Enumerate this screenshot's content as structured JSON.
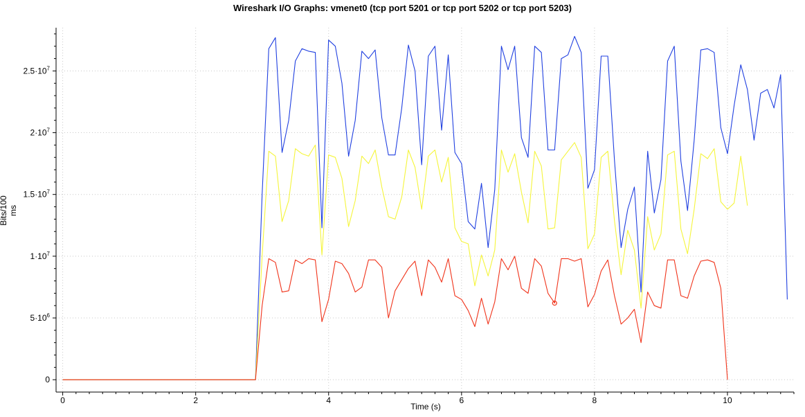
{
  "chart_data": {
    "type": "line",
    "title": "Wireshark I/O Graphs: vmenet0 (tcp port 5201 or tcp port 5202 or tcp port 5203)",
    "xlabel": "Time (s)",
    "ylabel": "Bits/100 ms",
    "xlim": [
      -0.1,
      11.0
    ],
    "ylim": [
      -1000000.0,
      28500000.0
    ],
    "x_ticks": [
      {
        "value": 0,
        "label": "0"
      },
      {
        "value": 2,
        "label": "2"
      },
      {
        "value": 4,
        "label": "4"
      },
      {
        "value": 6,
        "label": "6"
      },
      {
        "value": 8,
        "label": "8"
      },
      {
        "value": 10,
        "label": "10"
      }
    ],
    "y_ticks": [
      {
        "value": 0,
        "base": "0",
        "exp": ""
      },
      {
        "value": 5000000,
        "base": "5·10",
        "exp": "6"
      },
      {
        "value": 10000000,
        "base": "1·10",
        "exp": "7"
      },
      {
        "value": 15000000,
        "base": "1.5·10",
        "exp": "7"
      },
      {
        "value": 20000000,
        "base": "2·10",
        "exp": "7"
      },
      {
        "value": 25000000,
        "base": "2.5·10",
        "exp": "7"
      }
    ],
    "grid": true,
    "series": [
      {
        "color": "#1f3fe0",
        "x": [
          0,
          0.1,
          0.2,
          0.3,
          0.4,
          0.5,
          0.6,
          0.7,
          0.8,
          0.9,
          1.0,
          1.1,
          1.2,
          1.3,
          1.4,
          1.5,
          1.6,
          1.7,
          1.8,
          1.9,
          2.0,
          2.1,
          2.2,
          2.3,
          2.4,
          2.5,
          2.6,
          2.7,
          2.8,
          2.9,
          3.0,
          3.1,
          3.2,
          3.3,
          3.4,
          3.5,
          3.6,
          3.7,
          3.8,
          3.9,
          4.0,
          4.1,
          4.2,
          4.3,
          4.4,
          4.5,
          4.6,
          4.7,
          4.8,
          4.9,
          5.0,
          5.1,
          5.2,
          5.3,
          5.4,
          5.5,
          5.6,
          5.7,
          5.8,
          5.9,
          6.0,
          6.1,
          6.2,
          6.3,
          6.4,
          6.5,
          6.6,
          6.7,
          6.8,
          6.9,
          7.0,
          7.1,
          7.2,
          7.3,
          7.4,
          7.5,
          7.6,
          7.7,
          7.8,
          7.9,
          8.0,
          8.1,
          8.2,
          8.3,
          8.4,
          8.5,
          8.6,
          8.7,
          8.8,
          8.9,
          9.0,
          9.1,
          9.2,
          9.3,
          9.4,
          9.5,
          9.6,
          9.7,
          9.8,
          9.9,
          10.0,
          10.1,
          10.2,
          10.3,
          10.4,
          10.5,
          10.6,
          10.7,
          10.8,
          10.9
        ],
        "values": [
          0,
          0,
          0,
          0,
          0,
          0,
          0,
          0,
          0,
          0,
          0,
          0,
          0,
          0,
          0,
          0,
          0,
          0,
          0,
          0,
          0,
          0,
          0,
          0,
          0,
          0,
          0,
          0,
          0,
          0,
          15000000.0,
          26800000.0,
          27700000.0,
          18400000.0,
          21000000.0,
          25800000.0,
          26800000.0,
          26600000.0,
          26500000.0,
          12300000.0,
          27500000.0,
          27000000.0,
          24000000.0,
          18100000.0,
          21000000.0,
          26600000.0,
          26000000.0,
          26700000.0,
          21200000.0,
          18200000.0,
          18200000.0,
          22000000.0,
          27100000.0,
          25000000.0,
          17400000.0,
          26200000.0,
          27000000.0,
          20200000.0,
          26300000.0,
          18400000.0,
          17500000.0,
          12800000.0,
          12200000.0,
          15900000.0,
          10700000.0,
          15400000.0,
          27000000.0,
          25100000.0,
          27000000.0,
          19600000.0,
          18000000.0,
          27000000.0,
          26500000.0,
          18600000.0,
          18600000.0,
          26000000.0,
          26300000.0,
          27800000.0,
          26500000.0,
          15500000.0,
          17000000.0,
          26200000.0,
          26200000.0,
          17800000.0,
          10700000.0,
          13800000.0,
          15600000.0,
          7100000.0,
          18500000.0,
          13500000.0,
          16200000.0,
          25800000.0,
          27000000.0,
          17700000.0,
          13700000.0,
          19400000.0,
          26700000.0,
          26800000.0,
          26500000.0,
          20400000.0,
          18300000.0,
          22200000.0,
          25500000.0,
          23500000.0,
          19400000.0,
          23200000.0,
          23500000.0,
          22000000.0,
          24700000.0,
          6500000.0
        ]
      },
      {
        "color": "#f5f53a",
        "x": [
          0,
          0.1,
          0.2,
          0.3,
          0.4,
          0.5,
          0.6,
          0.7,
          0.8,
          0.9,
          1.0,
          1.1,
          1.2,
          1.3,
          1.4,
          1.5,
          1.6,
          1.7,
          1.8,
          1.9,
          2.0,
          2.1,
          2.2,
          2.3,
          2.4,
          2.5,
          2.6,
          2.7,
          2.8,
          2.9,
          3.0,
          3.1,
          3.2,
          3.3,
          3.4,
          3.5,
          3.6,
          3.7,
          3.8,
          3.9,
          4.0,
          4.1,
          4.2,
          4.3,
          4.4,
          4.5,
          4.6,
          4.7,
          4.8,
          4.9,
          5.0,
          5.1,
          5.2,
          5.3,
          5.4,
          5.5,
          5.6,
          5.7,
          5.8,
          5.9,
          6.0,
          6.1,
          6.2,
          6.3,
          6.4,
          6.5,
          6.6,
          6.7,
          6.8,
          6.9,
          7.0,
          7.1,
          7.2,
          7.3,
          7.4,
          7.5,
          7.6,
          7.7,
          7.8,
          7.9,
          8.0,
          8.1,
          8.2,
          8.3,
          8.4,
          8.5,
          8.6,
          8.7,
          8.8,
          8.9,
          9.0,
          9.1,
          9.2,
          9.3,
          9.4,
          9.5,
          9.6,
          9.7,
          9.8,
          9.9,
          10.0,
          10.1,
          10.2,
          10.3
        ],
        "values": [
          0,
          0,
          0,
          0,
          0,
          0,
          0,
          0,
          0,
          0,
          0,
          0,
          0,
          0,
          0,
          0,
          0,
          0,
          0,
          0,
          0,
          0,
          0,
          0,
          0,
          0,
          0,
          0,
          0,
          0,
          10000000.0,
          18500000.0,
          18100000.0,
          12800000.0,
          14500000.0,
          18700000.0,
          18300000.0,
          18100000.0,
          19000000.0,
          10100000.0,
          18200000.0,
          18000000.0,
          16300000.0,
          12400000.0,
          14500000.0,
          18100000.0,
          17500000.0,
          18600000.0,
          15600000.0,
          13200000.0,
          13000000.0,
          14800000.0,
          18600000.0,
          17200000.0,
          13800000.0,
          18100000.0,
          18600000.0,
          16000000.0,
          18000000.0,
          12300000.0,
          11200000.0,
          11000000.0,
          7600000.0,
          10100000.0,
          8400000.0,
          10500000.0,
          18600000.0,
          16800000.0,
          18300000.0,
          15200000.0,
          12700000.0,
          18500000.0,
          17300000.0,
          12200000.0,
          12300000.0,
          17800000.0,
          18500000.0,
          19200000.0,
          18000000.0,
          10600000.0,
          11800000.0,
          18000000.0,
          18500000.0,
          12900000.0,
          8500000.0,
          12100000.0,
          10500000.0,
          5800000.0,
          13200000.0,
          10500000.0,
          11800000.0,
          18200000.0,
          18500000.0,
          12200000.0,
          10200000.0,
          13800000.0,
          18300000.0,
          17900000.0,
          18700000.0,
          14400000.0,
          13800000.0,
          14300000.0,
          18100000.0,
          14100000.0
        ]
      },
      {
        "color": "#f0331a",
        "x": [
          0,
          0.1,
          0.2,
          0.3,
          0.4,
          0.5,
          0.6,
          0.7,
          0.8,
          0.9,
          1.0,
          1.1,
          1.2,
          1.3,
          1.4,
          1.5,
          1.6,
          1.7,
          1.8,
          1.9,
          2.0,
          2.1,
          2.2,
          2.3,
          2.4,
          2.5,
          2.6,
          2.7,
          2.8,
          2.9,
          3.0,
          3.1,
          3.2,
          3.3,
          3.4,
          3.5,
          3.6,
          3.7,
          3.8,
          3.9,
          4.0,
          4.1,
          4.2,
          4.3,
          4.4,
          4.5,
          4.6,
          4.7,
          4.8,
          4.9,
          5.0,
          5.1,
          5.2,
          5.3,
          5.4,
          5.5,
          5.6,
          5.7,
          5.8,
          5.9,
          6.0,
          6.1,
          6.2,
          6.3,
          6.4,
          6.5,
          6.6,
          6.7,
          6.8,
          6.9,
          7.0,
          7.1,
          7.2,
          7.3,
          7.4,
          7.5,
          7.6,
          7.7,
          7.8,
          7.9,
          8.0,
          8.1,
          8.2,
          8.3,
          8.4,
          8.5,
          8.6,
          8.7,
          8.8,
          8.9,
          9.0,
          9.1,
          9.2,
          9.3,
          9.4,
          9.5,
          9.6,
          9.7,
          9.8,
          9.9,
          10.0
        ],
        "values": [
          0,
          0,
          0,
          0,
          0,
          0,
          0,
          0,
          0,
          0,
          0,
          0,
          0,
          0,
          0,
          0,
          0,
          0,
          0,
          0,
          0,
          0,
          0,
          0,
          0,
          0,
          0,
          0,
          0,
          0,
          6000000.0,
          9800000.0,
          9500000.0,
          7100000.0,
          7200000.0,
          9700000.0,
          9400000.0,
          9800000.0,
          9700000.0,
          4700000.0,
          6500000.0,
          9600000.0,
          9400000.0,
          8600000.0,
          7100000.0,
          7500000.0,
          9700000.0,
          9700000.0,
          9100000.0,
          5000000.0,
          7200000.0,
          8100000.0,
          9000000.0,
          9600000.0,
          6800000.0,
          9700000.0,
          9100000.0,
          7900000.0,
          9800000.0,
          6800000.0,
          6500000.0,
          5600000.0,
          4300000.0,
          6600000.0,
          4500000.0,
          6300000.0,
          9800000.0,
          8900000.0,
          10000000.0,
          7400000.0,
          7000000.0,
          9800000.0,
          9200000.0,
          7000000.0,
          6200000.0,
          9800000.0,
          9800000.0,
          9600000.0,
          9800000.0,
          5900000.0,
          6900000.0,
          8800000.0,
          9700000.0,
          6800000.0,
          4500000.0,
          5000000.0,
          5700000.0,
          3000000.0,
          7100000.0,
          6000000.0,
          5800000.0,
          9700000.0,
          9700000.0,
          6800000.0,
          6600000.0,
          8400000.0,
          9600000.0,
          9700000.0,
          9500000.0,
          7400000.0,
          0
        ]
      }
    ],
    "marker": {
      "x": 7.4,
      "y": 6200000.0,
      "color": "#f0331a"
    }
  }
}
